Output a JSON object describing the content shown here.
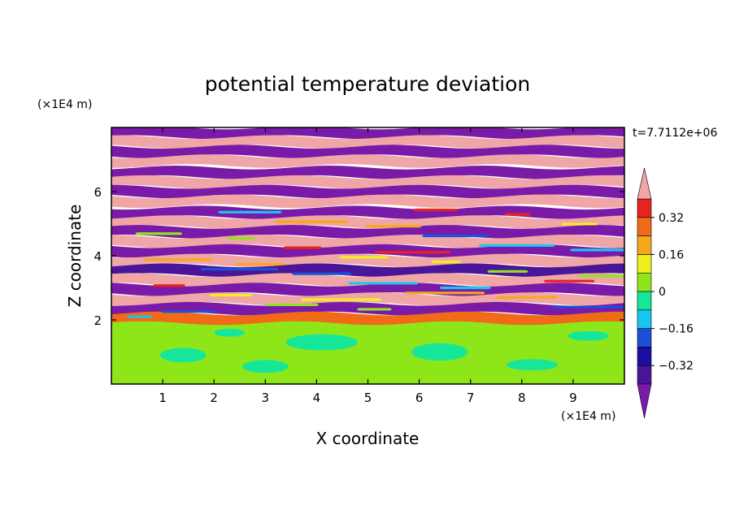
{
  "chart_data": {
    "type": "heatmap",
    "title": "potential temperature deviation",
    "xlabel": "X coordinate",
    "ylabel": "Z coordinate",
    "x_unit": "(×1E4 m)",
    "y_unit": "(×1E4 m)",
    "time_label": "t=7.7112e+06",
    "xlim": [
      0,
      10
    ],
    "ylim": [
      0,
      8
    ],
    "x_ticks": [
      1,
      2,
      3,
      4,
      5,
      6,
      7,
      8,
      9
    ],
    "y_ticks": [
      2,
      4,
      6
    ],
    "colorbar": {
      "levels": [
        -0.48,
        -0.4,
        -0.32,
        -0.24,
        -0.16,
        -0.08,
        0,
        0.08,
        0.16,
        0.24,
        0.32,
        0.4,
        0.48
      ],
      "colors": [
        "#7a1aa8",
        "#4a1699",
        "#1a0fa0",
        "#1d4fd8",
        "#19c6f0",
        "#15e69a",
        "#8ee619",
        "#f0f020",
        "#f5a81a",
        "#f06a18",
        "#e8231e",
        "#f0a6a6"
      ],
      "tick_labels": [
        "0.32",
        "0.16",
        "0",
        "−0.16",
        "−0.32"
      ],
      "tick_values": [
        0.32,
        0.16,
        0,
        -0.16,
        -0.32
      ],
      "extend": "both"
    },
    "bands": [
      {
        "z": 7.85,
        "value": -0.6
      },
      {
        "z": 7.55,
        "value": 0.6
      },
      {
        "z": 7.25,
        "value": -0.6
      },
      {
        "z": 6.95,
        "value": 0.6
      },
      {
        "z": 6.6,
        "value": -0.6
      },
      {
        "z": 6.3,
        "value": 0.6
      },
      {
        "z": 6.0,
        "value": -0.6
      },
      {
        "z": 5.7,
        "value": 0.6
      },
      {
        "z": 5.35,
        "value": -0.6
      },
      {
        "z": 5.05,
        "value": 0.6
      },
      {
        "z": 4.75,
        "value": -0.6
      },
      {
        "z": 4.45,
        "value": 0.6
      },
      {
        "z": 4.15,
        "value": -0.6
      },
      {
        "z": 3.85,
        "value": 0.6
      },
      {
        "z": 3.55,
        "value": -0.4
      },
      {
        "z": 3.25,
        "value": 0.6
      },
      {
        "z": 2.95,
        "value": -0.6
      },
      {
        "z": 2.65,
        "value": 0.6
      },
      {
        "z": 2.35,
        "value": -0.6
      },
      {
        "z": 2.05,
        "value": 0.3
      }
    ],
    "lower_layer": {
      "z_top": 2.0,
      "base_value": 0.04,
      "patch_value": -0.05
    }
  }
}
